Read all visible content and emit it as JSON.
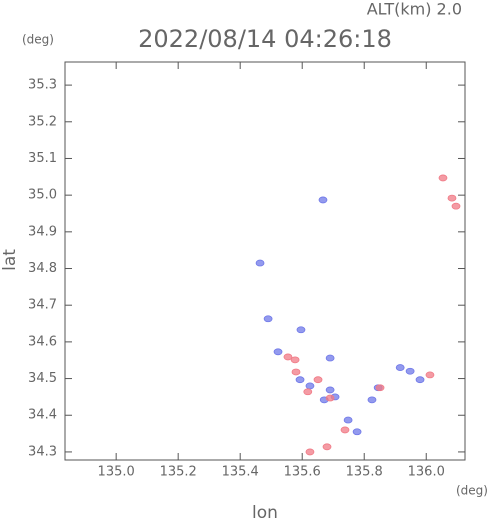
{
  "chart_data": {
    "type": "scatter",
    "annotation": "ALT(km) 2.0",
    "title": "2022/08/14 04:26:18",
    "y_unit": "(deg)",
    "x_unit": "(deg)",
    "x_label": "lon",
    "y_label": "lat",
    "xlim": [
      134.835,
      136.125
    ],
    "ylim": [
      34.278,
      35.363
    ],
    "xticks": [
      {
        "value": 135,
        "label": "135.0"
      },
      135.2,
      135.4,
      135.6,
      135.8,
      {
        "value": 136,
        "label": "136.0"
      }
    ],
    "yticks": [
      34.3,
      34.4,
      34.5,
      34.6,
      34.7,
      34.8,
      34.9,
      {
        "value": 35,
        "label": "35.0"
      },
      35.1,
      35.2,
      35.3
    ],
    "series": [
      {
        "color": "#6f78e8",
        "x": [
          135.667,
          135.464,
          135.49,
          135.596,
          135.522,
          135.593,
          135.625,
          135.69,
          135.706,
          135.671,
          135.748,
          135.777,
          135.825,
          135.916,
          135.948,
          135.98,
          135.845,
          135.69
        ],
        "y": [
          34.987,
          34.815,
          34.663,
          34.633,
          34.573,
          34.497,
          34.48,
          34.469,
          34.45,
          34.442,
          34.387,
          34.355,
          34.442,
          34.53,
          34.52,
          34.497,
          34.475,
          34.556
        ]
      },
      {
        "color": "#f07a86",
        "x": [
          136.054,
          136.083,
          136.096,
          135.554,
          135.58,
          135.651,
          135.618,
          135.69,
          135.738,
          135.68,
          135.625,
          135.851,
          136.012,
          135.577
        ],
        "y": [
          35.047,
          34.992,
          34.97,
          34.559,
          34.518,
          34.497,
          34.464,
          34.447,
          34.36,
          34.314,
          34.3,
          34.475,
          34.51,
          34.551
        ]
      }
    ]
  }
}
